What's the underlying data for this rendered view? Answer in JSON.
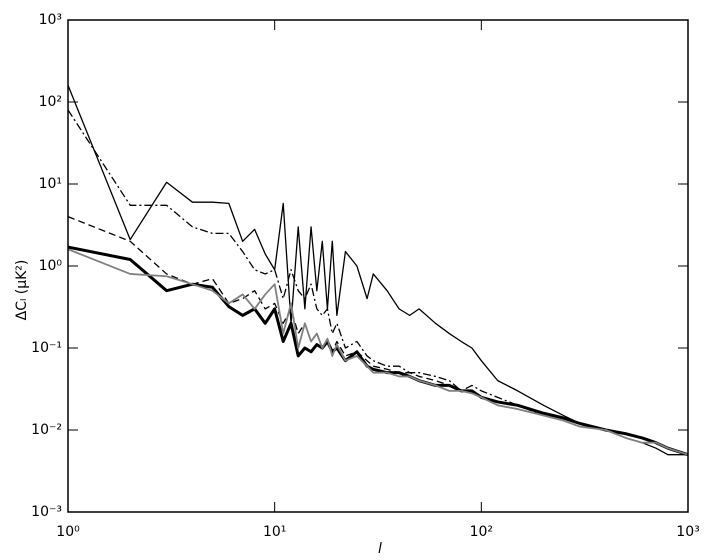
{
  "chart_data": {
    "type": "line",
    "x_label": "l",
    "y_label": "ΔCₗ  (μK²)",
    "xscale": "log",
    "yscale": "log",
    "xlim": [
      1,
      1000
    ],
    "ylim": [
      0.001,
      1000
    ],
    "xticks": [
      {
        "value": 1,
        "label": "10⁰"
      },
      {
        "value": 10,
        "label": "10¹"
      },
      {
        "value": 100,
        "label": "10²"
      },
      {
        "value": 1000,
        "label": "10³"
      }
    ],
    "yticks": [
      {
        "value": 0.001,
        "label": "10⁻³"
      },
      {
        "value": 0.01,
        "label": "10⁻²"
      },
      {
        "value": 0.1,
        "label": "10⁻¹"
      },
      {
        "value": 1,
        "label": "10⁰"
      },
      {
        "value": 10,
        "label": "10¹"
      },
      {
        "value": 100,
        "label": "10²"
      },
      {
        "value": 1000,
        "label": "10³"
      }
    ],
    "x": [
      1,
      2,
      3,
      4,
      5,
      6,
      7,
      8,
      9,
      10,
      11,
      12,
      13,
      14,
      15,
      16,
      17,
      18,
      19,
      20,
      22,
      25,
      28,
      30,
      35,
      40,
      45,
      50,
      60,
      70,
      80,
      90,
      100,
      120,
      150,
      200,
      250,
      300,
      400,
      500,
      600,
      700,
      800,
      1000
    ],
    "series": [
      {
        "color": "#000000",
        "linestyle": "solid",
        "weight": "thin",
        "values": [
          160,
          2.1,
          10.5,
          6,
          6,
          5.8,
          2,
          2.8,
          1.4,
          0.9,
          5.8,
          0.2,
          3,
          0.3,
          3,
          0.5,
          2,
          0.3,
          2,
          0.25,
          1.5,
          1,
          0.4,
          0.8,
          0.5,
          0.3,
          0.25,
          0.3,
          0.2,
          0.15,
          0.12,
          0.1,
          0.07,
          0.04,
          0.03,
          0.02,
          0.015,
          0.012,
          0.01,
          0.008,
          0.007,
          0.006,
          0.005,
          0.005
        ]
      },
      {
        "color": "#000000",
        "linestyle": "dash-dot",
        "weight": "thin",
        "values": [
          80,
          5.5,
          5.5,
          3,
          2.5,
          2.5,
          1.5,
          0.9,
          0.8,
          0.9,
          0.4,
          0.9,
          0.5,
          0.4,
          0.6,
          0.3,
          0.25,
          0.3,
          0.15,
          0.2,
          0.1,
          0.12,
          0.08,
          0.07,
          0.06,
          0.06,
          0.05,
          0.05,
          0.045,
          0.04,
          0.03,
          0.035,
          0.03,
          0.025,
          0.02,
          0.015,
          0.014,
          0.012,
          0.01,
          0.009,
          0.008,
          0.007,
          0.006,
          0.005
        ]
      },
      {
        "color": "#000000",
        "linestyle": "dashed",
        "weight": "thin",
        "values": [
          4,
          2,
          0.8,
          0.6,
          0.7,
          0.35,
          0.4,
          0.5,
          0.3,
          0.35,
          0.2,
          0.3,
          0.15,
          0.2,
          0.12,
          0.15,
          0.1,
          0.13,
          0.09,
          0.12,
          0.08,
          0.09,
          0.07,
          0.06,
          0.055,
          0.05,
          0.05,
          0.045,
          0.04,
          0.035,
          0.03,
          0.03,
          0.025,
          0.022,
          0.02,
          0.016,
          0.014,
          0.012,
          0.01,
          0.009,
          0.008,
          0.007,
          0.006,
          0.005
        ]
      },
      {
        "color": "#000000",
        "linestyle": "solid",
        "weight": "thick",
        "values": [
          1.7,
          1.2,
          0.5,
          0.6,
          0.55,
          0.32,
          0.25,
          0.3,
          0.2,
          0.3,
          0.12,
          0.2,
          0.08,
          0.1,
          0.09,
          0.11,
          0.1,
          0.12,
          0.09,
          0.1,
          0.07,
          0.09,
          0.06,
          0.055,
          0.05,
          0.05,
          0.045,
          0.04,
          0.035,
          0.035,
          0.03,
          0.03,
          0.025,
          0.022,
          0.02,
          0.016,
          0.014,
          0.012,
          0.01,
          0.009,
          0.008,
          0.007,
          0.006,
          0.005
        ]
      },
      {
        "color": "#808080",
        "linestyle": "solid",
        "weight": "medium",
        "values": [
          1.6,
          0.8,
          0.75,
          0.6,
          0.5,
          0.35,
          0.45,
          0.3,
          0.45,
          0.6,
          0.15,
          0.35,
          0.1,
          0.2,
          0.12,
          0.15,
          0.1,
          0.13,
          0.08,
          0.11,
          0.07,
          0.08,
          0.06,
          0.05,
          0.05,
          0.045,
          0.045,
          0.04,
          0.035,
          0.03,
          0.03,
          0.028,
          0.025,
          0.02,
          0.018,
          0.015,
          0.013,
          0.011,
          0.01,
          0.008,
          0.007,
          0.007,
          0.006,
          0.005
        ]
      }
    ]
  }
}
